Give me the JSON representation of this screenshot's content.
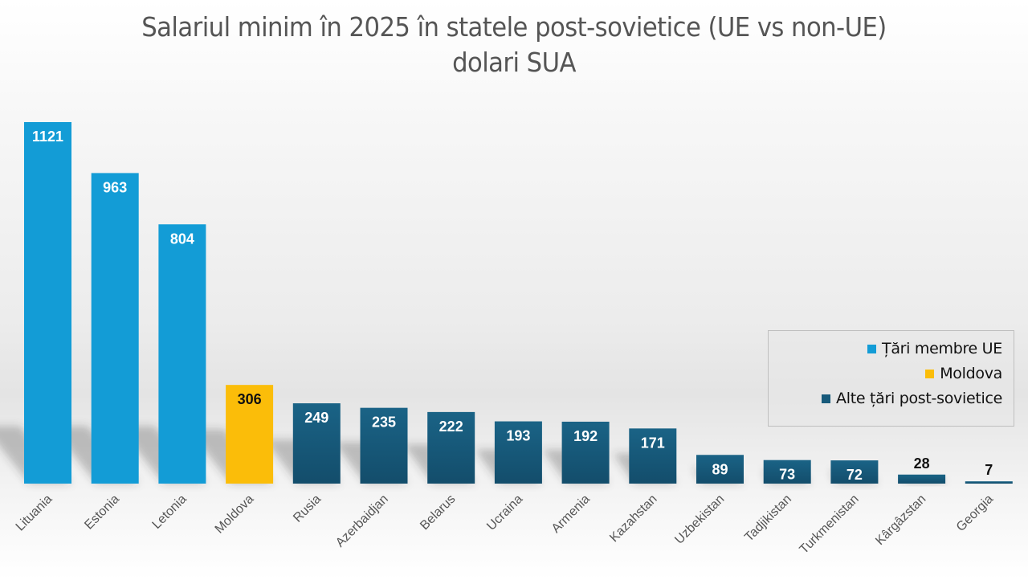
{
  "chart_data": {
    "type": "bar",
    "title": "Salariul minim în 2025 în statele post-sovietice (UE vs non-UE)",
    "subtitle": "dolari SUA",
    "xlabel": "",
    "ylabel": "",
    "ylim": [
      0,
      1121
    ],
    "grid": false,
    "legend_position": "right",
    "categories": [
      "Lituania",
      "Estonia",
      "Letonia",
      "Moldova",
      "Rusia",
      "Azerbaidjan",
      "Belarus",
      "Ucraina",
      "Armenia",
      "Kazahstan",
      "Uzbekistan",
      "Tadjikistan",
      "Turkmenistan",
      "Kârgâzstan",
      "Georgia"
    ],
    "values": [
      1121,
      963,
      804,
      306,
      249,
      235,
      222,
      193,
      192,
      171,
      89,
      73,
      72,
      28,
      7
    ],
    "groups": [
      "eu",
      "eu",
      "eu",
      "md",
      "other",
      "other",
      "other",
      "other",
      "other",
      "other",
      "other",
      "other",
      "other",
      "other",
      "other"
    ],
    "series": [
      {
        "key": "eu",
        "name": "Țări membre UE",
        "color": "#139cd6",
        "label_color": "#ffffff"
      },
      {
        "key": "md",
        "name": "Moldova",
        "color": "#fbbd09",
        "label_color": "#111111"
      },
      {
        "key": "other",
        "name": "Alte țări post-sovietice",
        "color": "#175a7b",
        "label_color": "#ffffff"
      }
    ]
  }
}
